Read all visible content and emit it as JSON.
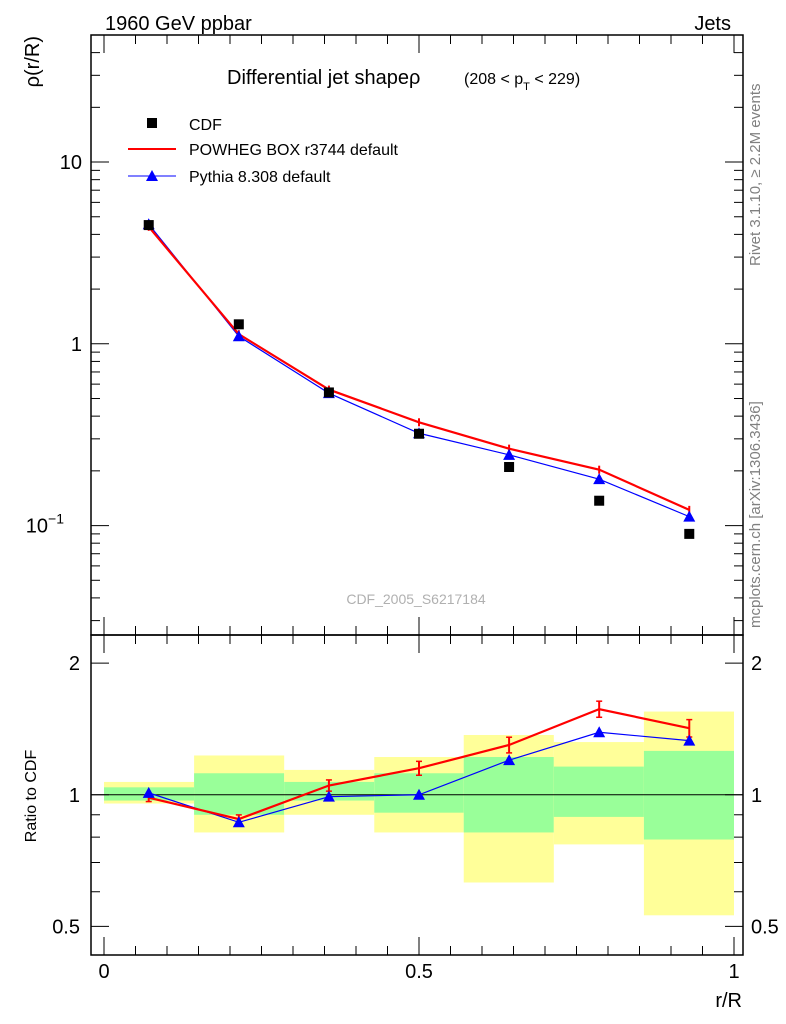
{
  "header": {
    "left": "1960 GeV ppbar",
    "right": "Jets"
  },
  "side_labels": {
    "rivet": "Rivet 3.1.10, ≥ 2.2M events",
    "mcplots": "mcplots.cern.ch [arXiv:1306.3436]"
  },
  "watermark": "CDF_2005_S6217184",
  "colors": {
    "data": "#000000",
    "powheg": "#ff0000",
    "pythia": "#0000ff",
    "band_inner": "#99ff99",
    "band_outer": "#ffff99",
    "side_text": "#808080",
    "watermark": "#b0b0b0"
  },
  "chart_data": [
    {
      "type": "scatter",
      "title": "Differential jet shapeρ",
      "title_range": "(208 < p_T < 229)",
      "title_range_parts": {
        "prefix": "(208 < p",
        "subscript": "T",
        "suffix": " < 229)"
      },
      "ylabel": "ρ(r/R)",
      "xlim": [
        0,
        1
      ],
      "ylim": [
        0.025,
        50
      ],
      "yscale": "log",
      "yticks": [
        {
          "value": 10,
          "label": "10",
          "exp": ""
        },
        {
          "value": 1,
          "label": "1",
          "exp": ""
        },
        {
          "value": 0.1,
          "label": "10",
          "exp": "−1"
        }
      ],
      "legend_position": "top-left",
      "series": [
        {
          "name": "CDF",
          "marker": "square",
          "color": "#000000",
          "x": [
            0.071,
            0.214,
            0.357,
            0.5,
            0.643,
            0.786,
            0.929
          ],
          "y": [
            4.5,
            1.28,
            0.54,
            0.32,
            0.21,
            0.137,
            0.09
          ]
        },
        {
          "name": "POWHEG BOX r3744 default",
          "marker": "line",
          "color": "#ff0000",
          "x": [
            0.071,
            0.214,
            0.357,
            0.5,
            0.643,
            0.786,
            0.929
          ],
          "y": [
            4.4,
            1.13,
            0.56,
            0.37,
            0.265,
            0.203,
            0.122
          ]
        },
        {
          "name": "Pythia 8.308 default",
          "marker": "triangle",
          "color": "#0000ff",
          "x": [
            0.071,
            0.214,
            0.357,
            0.5,
            0.643,
            0.786,
            0.929
          ],
          "y": [
            4.55,
            1.1,
            0.535,
            0.322,
            0.245,
            0.18,
            0.112
          ]
        }
      ]
    },
    {
      "type": "line",
      "ylabel": "Ratio to CDF",
      "xlabel": "r/R",
      "xlim": [
        0,
        1
      ],
      "ylim": [
        0.43,
        2.32
      ],
      "yscale": "log",
      "xticks": [
        {
          "value": 0,
          "label": "0"
        },
        {
          "value": 0.5,
          "label": "0.5"
        },
        {
          "value": 1,
          "label": "1"
        }
      ],
      "yticks": [
        {
          "value": 0.5,
          "label": "0.5"
        },
        {
          "value": 1,
          "label": "1"
        },
        {
          "value": 2,
          "label": "2"
        }
      ],
      "bands": [
        {
          "x0": 0.0,
          "x1": 0.143,
          "inner": [
            0.97,
            1.04
          ],
          "outer": [
            0.955,
            1.07
          ]
        },
        {
          "x0": 0.143,
          "x1": 0.286,
          "inner": [
            0.9,
            1.12
          ],
          "outer": [
            0.82,
            1.23
          ]
        },
        {
          "x0": 0.286,
          "x1": 0.429,
          "inner": [
            0.97,
            1.07
          ],
          "outer": [
            0.9,
            1.14
          ]
        },
        {
          "x0": 0.429,
          "x1": 0.571,
          "inner": [
            0.91,
            1.12
          ],
          "outer": [
            0.82,
            1.22
          ]
        },
        {
          "x0": 0.571,
          "x1": 0.714,
          "inner": [
            0.82,
            1.22
          ],
          "outer": [
            0.63,
            1.37
          ]
        },
        {
          "x0": 0.714,
          "x1": 0.857,
          "inner": [
            0.89,
            1.16
          ],
          "outer": [
            0.77,
            1.32
          ]
        },
        {
          "x0": 0.857,
          "x1": 1.0,
          "inner": [
            0.79,
            1.26
          ],
          "outer": [
            0.53,
            1.55
          ]
        }
      ],
      "series": [
        {
          "name": "POWHEG BOX r3744 default",
          "color": "#ff0000",
          "x": [
            0.071,
            0.214,
            0.357,
            0.5,
            0.643,
            0.786,
            0.929
          ],
          "y": [
            0.985,
            0.88,
            1.05,
            1.15,
            1.3,
            1.57,
            1.42
          ],
          "err": [
            0.01,
            0.01,
            0.02,
            0.03,
            0.04,
            0.05,
            0.05
          ]
        },
        {
          "name": "Pythia 8.308 default",
          "color": "#0000ff",
          "x": [
            0.071,
            0.214,
            0.357,
            0.5,
            0.643,
            0.786,
            0.929
          ],
          "y": [
            1.01,
            0.865,
            0.99,
            1.0,
            1.2,
            1.39,
            1.33
          ],
          "err": [
            0,
            0,
            0,
            0,
            0,
            0,
            0
          ]
        }
      ]
    }
  ]
}
